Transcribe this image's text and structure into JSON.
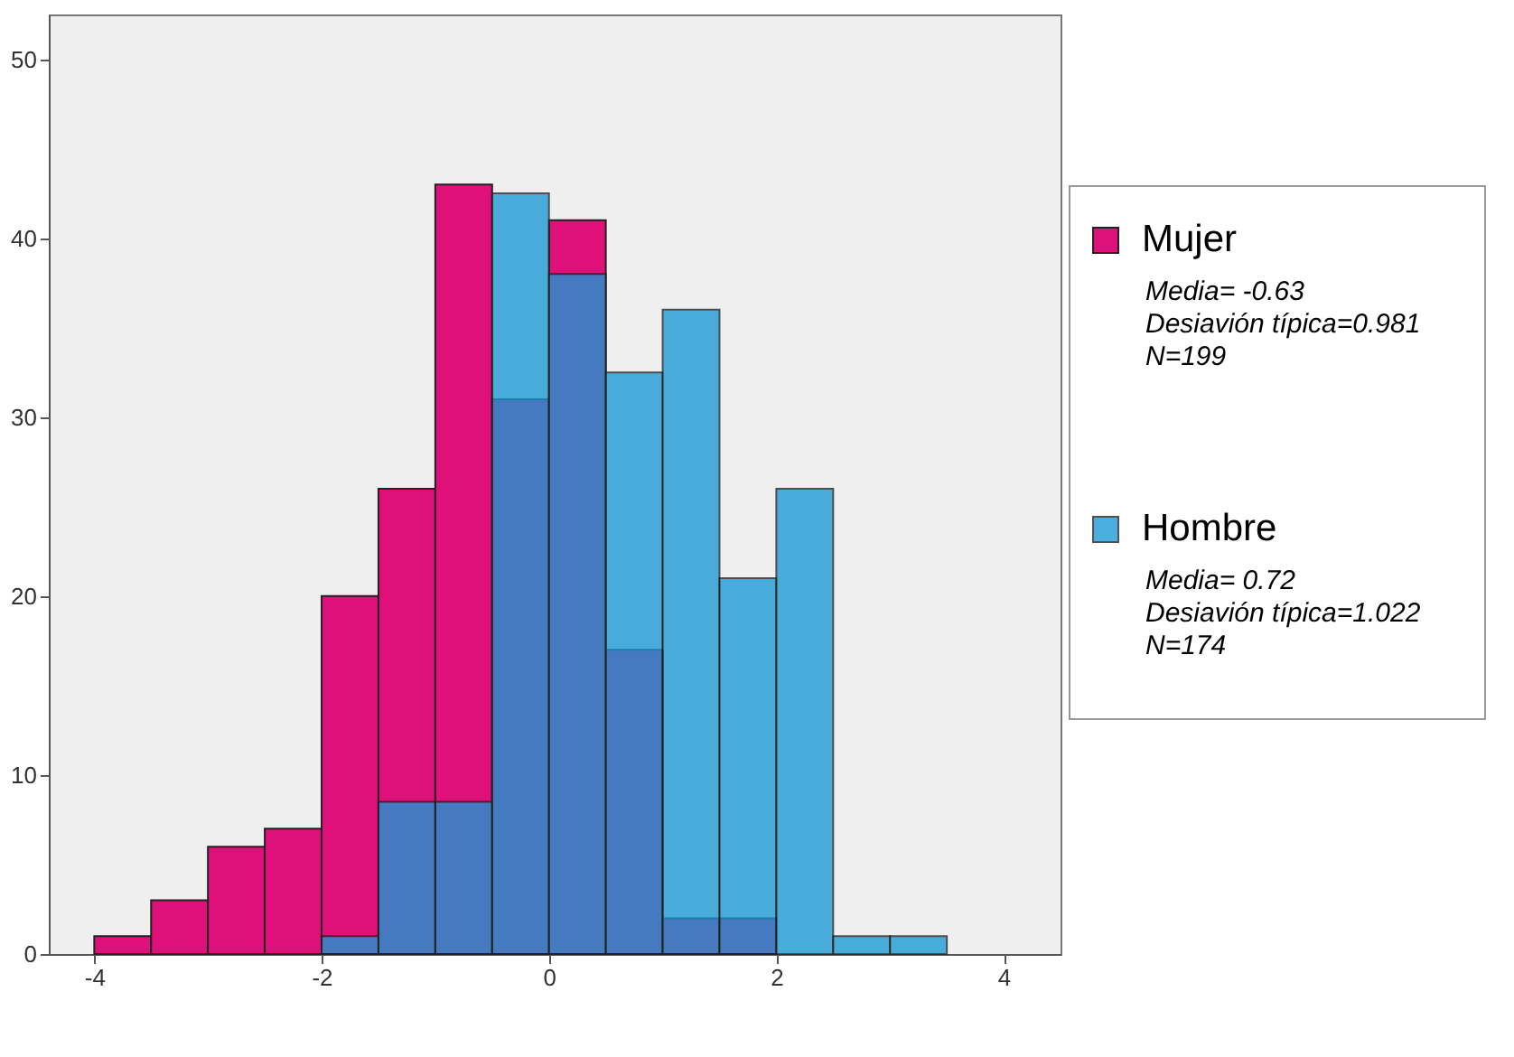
{
  "chart_data": {
    "type": "histogram",
    "bins": [
      -4,
      -3.5,
      -3,
      -2.5,
      -2,
      -1.5,
      -1,
      -0.5,
      0,
      0.5,
      1,
      1.5,
      2,
      2.5,
      3,
      3.5
    ],
    "series": [
      {
        "name": "Mujer",
        "color": "#e0107a",
        "values": [
          1,
          3,
          6,
          7,
          20,
          26,
          43,
          31,
          41,
          17,
          2,
          2,
          0,
          0,
          0
        ]
      },
      {
        "name": "Hombre",
        "color": "#1a98d5",
        "values": [
          0,
          0,
          0,
          0,
          1,
          8.5,
          8.5,
          42.5,
          38,
          32.5,
          36,
          21,
          26,
          1,
          1
        ]
      }
    ],
    "xlim": [
      -4.4,
      4.5
    ],
    "xticks": [
      -4,
      -2,
      0,
      2,
      4
    ],
    "ylim": [
      0,
      52.5
    ],
    "yticks": [
      0,
      10,
      20,
      30,
      40,
      50
    ],
    "grid": false,
    "legend": "right",
    "annotations": [
      "Media= -0.63",
      "Desiavión típica=0.981",
      "N=199",
      "Media= 0.72",
      "Desiavión típica=1.022",
      "N=174"
    ]
  }
}
